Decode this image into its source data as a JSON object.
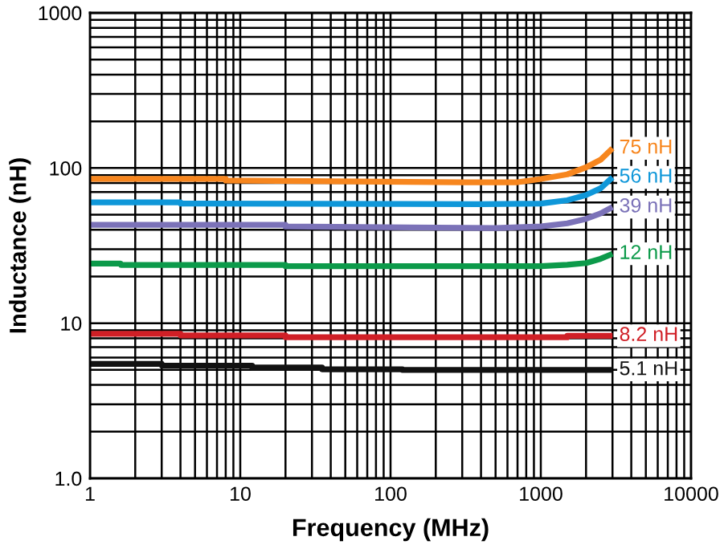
{
  "chart_data": {
    "type": "line",
    "xlabel": "Frequency (MHz)",
    "ylabel": "Inductance (nH)",
    "log": "xy",
    "grid": true,
    "legend": false,
    "marker": "none",
    "line_style": "solid",
    "xlim": [
      1,
      10000
    ],
    "ylim": [
      1,
      1000
    ],
    "xticks": [
      1,
      10,
      100,
      1000,
      10000
    ],
    "yticks": [
      {
        "value": 1,
        "label": "1.0"
      },
      10,
      100,
      1000
    ],
    "series": [
      {
        "name": "75 nH",
        "color": "#f7861e",
        "x": [
          1,
          8,
          8.01,
          300,
          700,
          1000,
          1500,
          2000,
          2500,
          3000
        ],
        "values": [
          85,
          85,
          83,
          81,
          81,
          85,
          91,
          101,
          113,
          134
        ]
      },
      {
        "name": "56 nH",
        "color": "#0f97d9",
        "x": [
          1,
          4,
          4.01,
          400,
          1000,
          1500,
          2000,
          2500,
          3000
        ],
        "values": [
          60,
          60,
          59,
          58.5,
          59,
          62,
          67,
          74,
          87
        ]
      },
      {
        "name": "39 nH",
        "color": "#7b72b8",
        "x": [
          1,
          20,
          20.01,
          500,
          1000,
          1500,
          2000,
          2500,
          3000
        ],
        "values": [
          43,
          43,
          42,
          41,
          42,
          44,
          47,
          51,
          56
        ]
      },
      {
        "name": "12 nH",
        "color": "#0c9a4a",
        "x": [
          1,
          1.6,
          1.61,
          20,
          20.01,
          1000,
          1500,
          2000,
          2500,
          3000
        ],
        "values": [
          24.2,
          24.2,
          23.7,
          23.7,
          23.3,
          23.3,
          23.8,
          24.4,
          26,
          28
        ]
      },
      {
        "name": "8.2 nH",
        "color": "#d01f26",
        "x": [
          1,
          4,
          4.01,
          20,
          20.01,
          1500,
          1500.1,
          3000
        ],
        "values": [
          8.55,
          8.55,
          8.35,
          8.35,
          8.12,
          8.12,
          8.3,
          8.3
        ]
      },
      {
        "name": "5.1 nH",
        "color": "#111111",
        "x": [
          1,
          3,
          3.01,
          12,
          12.01,
          35,
          35.01,
          120,
          120.01,
          3000
        ],
        "values": [
          5.46,
          5.46,
          5.33,
          5.33,
          5.18,
          5.18,
          5.05,
          5.05,
          5.0,
          5.0
        ]
      }
    ]
  }
}
